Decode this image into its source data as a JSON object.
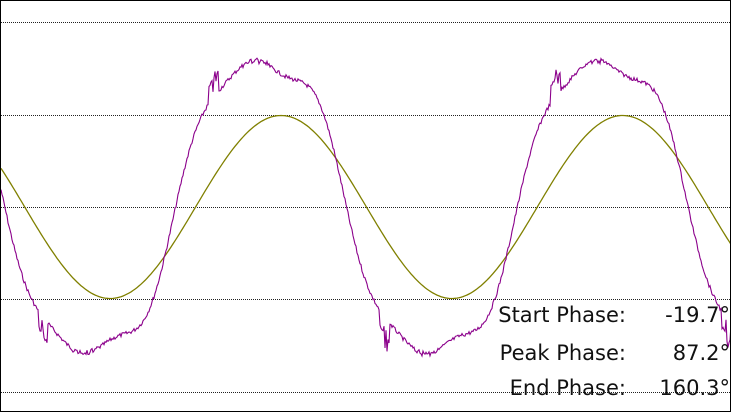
{
  "chart_data": {
    "type": "line",
    "title": "",
    "xlabel": "",
    "ylabel": "",
    "grid": {
      "horizontal": true,
      "vertical": false,
      "style": "dotted"
    },
    "axis_units": "phase (degrees)",
    "x_range": [
      -205,
      565
    ],
    "series": [
      {
        "color": "#808000",
        "shape": "sine",
        "amplitude": 1,
        "peaks_deg": [
          90,
          450
        ],
        "troughs_deg": [
          -90,
          270
        ]
      },
      {
        "color": "#8b008b",
        "shape": "distorted-sine",
        "amplitude": 1.85,
        "peaks_deg": [
          70,
          430
        ],
        "troughs_deg": [
          -110,
          250
        ]
      }
    ]
  },
  "readouts": [
    {
      "label": "Start Phase:",
      "value": "-19.7°"
    },
    {
      "label": "Peak Phase:",
      "value": "87.2°"
    },
    {
      "label": "End Phase:",
      "value": "160.3°"
    }
  ]
}
